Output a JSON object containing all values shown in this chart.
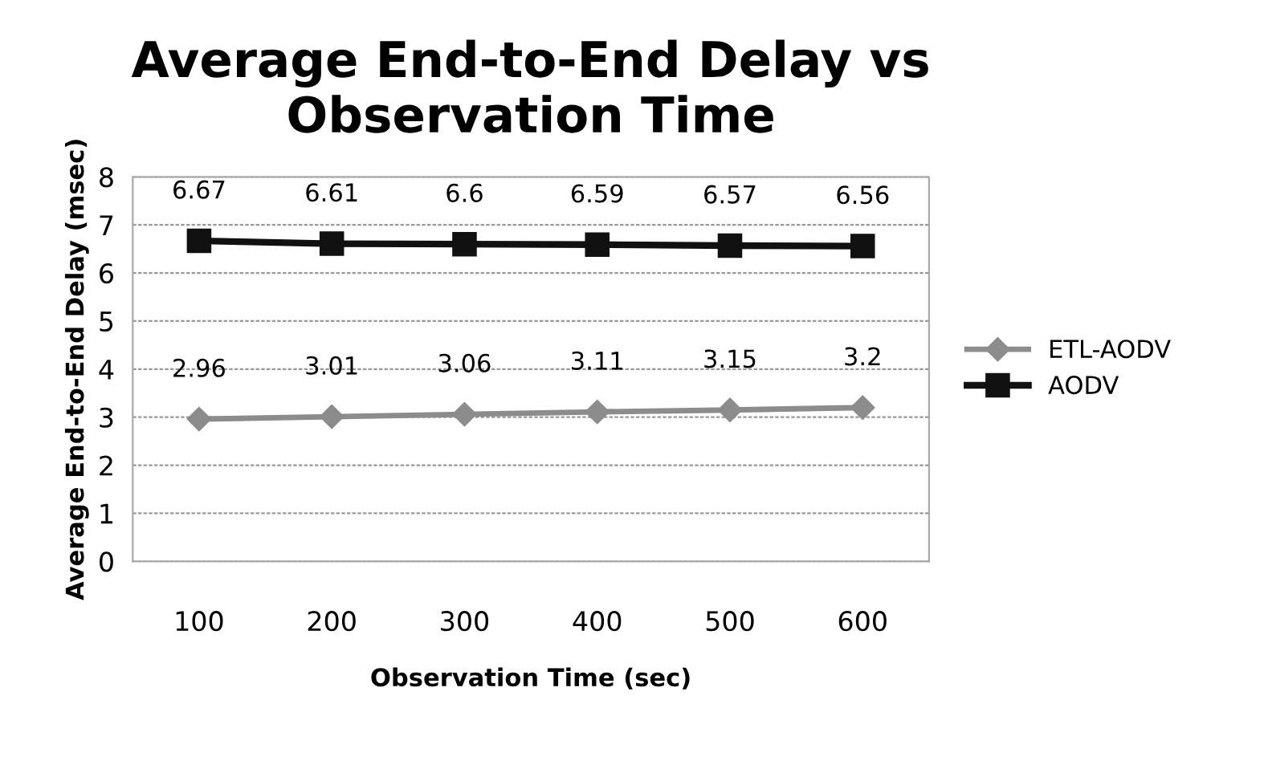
{
  "chart_data": {
    "type": "line",
    "title": "Average End-to-End Delay vs\nObservation Time",
    "xlabel": "Observation Time (sec)",
    "ylabel": "Average End-to-End Delay (msec)",
    "categories": [
      "100",
      "200",
      "300",
      "400",
      "500",
      "600"
    ],
    "series": [
      {
        "name": "ETL-AODV",
        "color": "#8c8c8c",
        "marker": "diamond",
        "values": [
          2.96,
          3.01,
          3.06,
          3.11,
          3.15,
          3.2
        ]
      },
      {
        "name": "AODV",
        "color": "#111111",
        "marker": "square",
        "values": [
          6.67,
          6.61,
          6.6,
          6.59,
          6.57,
          6.56
        ]
      }
    ],
    "ylim": [
      0,
      8
    ],
    "yticks": [
      0,
      1,
      2,
      3,
      4,
      5,
      6,
      7,
      8
    ],
    "grid": "y",
    "legend": "right",
    "data_labels": true
  }
}
